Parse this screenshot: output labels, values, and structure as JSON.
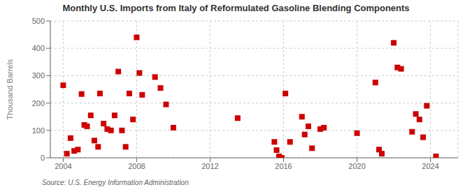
{
  "chart_data": {
    "type": "scatter",
    "title": "Monthly U.S. Imports from Italy of Reformulated Gasoline Blending Components",
    "ylabel": "Thousand Barrels",
    "annotations": [
      "Source: U.S. Energy Information Administration"
    ],
    "x": [
      2004.0,
      2004.2,
      2004.4,
      2004.6,
      2004.8,
      2005.0,
      2005.15,
      2005.3,
      2005.5,
      2005.7,
      2005.9,
      2006.0,
      2006.2,
      2006.4,
      2006.6,
      2006.8,
      2007.0,
      2007.2,
      2007.4,
      2007.6,
      2007.8,
      2008.0,
      2008.15,
      2008.3,
      2009.0,
      2009.3,
      2009.6,
      2010.0,
      2013.5,
      2015.5,
      2015.62,
      2015.75,
      2015.9,
      2016.1,
      2016.35,
      2017.0,
      2017.15,
      2017.35,
      2017.55,
      2018.0,
      2018.2,
      2020.0,
      2021.0,
      2021.2,
      2021.35,
      2022.0,
      2022.2,
      2022.4,
      2023.0,
      2023.2,
      2023.4,
      2023.6,
      2023.8,
      2024.3
    ],
    "values": [
      265,
      15,
      72,
      25,
      30,
      233,
      120,
      115,
      155,
      63,
      40,
      235,
      125,
      105,
      100,
      155,
      315,
      100,
      40,
      235,
      140,
      440,
      310,
      230,
      295,
      255,
      195,
      110,
      145,
      58,
      28,
      5,
      0,
      235,
      58,
      150,
      85,
      115,
      35,
      105,
      110,
      90,
      275,
      30,
      15,
      420,
      330,
      325,
      95,
      160,
      140,
      75,
      190,
      5
    ],
    "color": "#cc0000",
    "marker": "square",
    "xlim": [
      2003.3,
      2025.5
    ],
    "ylim": [
      0,
      500
    ],
    "xticks": [
      2004,
      2008,
      2012,
      2016,
      2020,
      2024
    ],
    "yticks": [
      0,
      100,
      200,
      300,
      400,
      500
    ],
    "grid": true
  }
}
